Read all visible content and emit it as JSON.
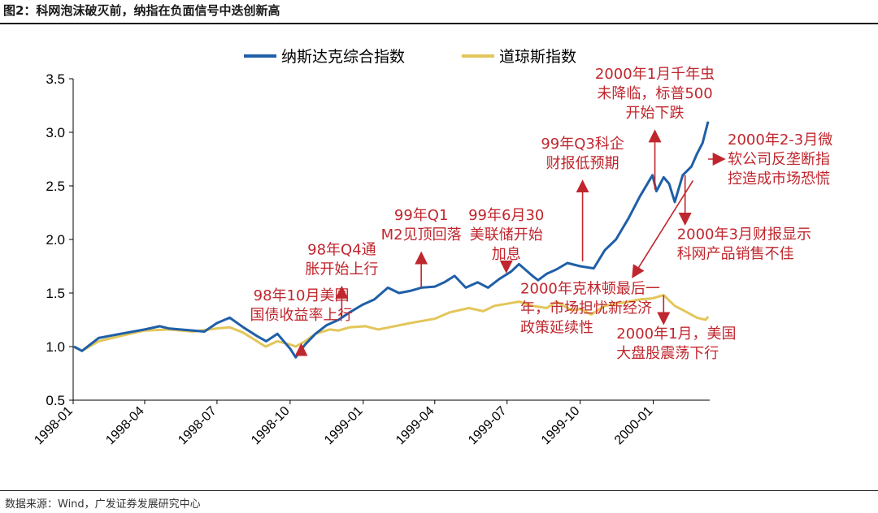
{
  "title": "图2：科网泡沫破灭前，纳指在负面信号中迭创新高",
  "source": "数据来源：Wind，广发证券发展研究中心",
  "colors": {
    "nasdaq": "#1f5fa8",
    "dow": "#e3c65a",
    "annotation": "#c0262d",
    "axis": "#000000"
  },
  "chart_data": {
    "type": "line",
    "x_start": "1998-01",
    "x_end": "2000-03",
    "x_ticks": [
      "1998-01",
      "1998-04",
      "1998-07",
      "1998-10",
      "1999-01",
      "1999-04",
      "1999-07",
      "1999-10",
      "2000-01"
    ],
    "ylim": [
      0.5,
      3.5
    ],
    "y_ticks": [
      "0.5",
      "1.0",
      "1.5",
      "2.0",
      "2.5",
      "3.0",
      "3.5"
    ],
    "legend": {
      "position": "top",
      "entries": [
        "纳斯达克综合指数",
        "道琼斯指数"
      ]
    },
    "series": [
      {
        "name": "纳斯达克综合指数",
        "color": "#1f5fa8",
        "x": [
          "1998-01-02",
          "1998-01-12",
          "1998-02-02",
          "1998-03-02",
          "1998-04-01",
          "1998-04-20",
          "1998-05-01",
          "1998-06-01",
          "1998-06-15",
          "1998-07-01",
          "1998-07-17",
          "1998-08-03",
          "1998-08-20",
          "1998-09-01",
          "1998-09-15",
          "1998-10-01",
          "1998-10-08",
          "1998-10-20",
          "1998-11-02",
          "1998-11-16",
          "1998-12-01",
          "1998-12-15",
          "1998-12-31",
          "1999-01-15",
          "1999-02-01",
          "1999-02-15",
          "1999-03-01",
          "1999-03-15",
          "1999-04-01",
          "1999-04-13",
          "1999-04-26",
          "1999-05-10",
          "1999-05-25",
          "1999-06-07",
          "1999-06-21",
          "1999-07-06",
          "1999-07-16",
          "1999-08-02",
          "1999-08-09",
          "1999-08-20",
          "1999-09-01",
          "1999-09-15",
          "1999-10-01",
          "1999-10-18",
          "1999-11-01",
          "1999-11-15",
          "1999-12-01",
          "1999-12-15",
          "1999-12-31",
          "2000-01-05",
          "2000-01-14",
          "2000-01-21",
          "2000-01-28",
          "2000-02-07",
          "2000-02-18",
          "2000-02-25",
          "2000-03-03",
          "2000-03-10"
        ],
        "y": [
          1.0,
          0.96,
          1.08,
          1.12,
          1.16,
          1.19,
          1.17,
          1.15,
          1.14,
          1.22,
          1.27,
          1.18,
          1.1,
          1.05,
          1.12,
          0.98,
          0.9,
          1.02,
          1.12,
          1.2,
          1.25,
          1.32,
          1.39,
          1.44,
          1.55,
          1.5,
          1.52,
          1.55,
          1.56,
          1.6,
          1.66,
          1.55,
          1.6,
          1.55,
          1.63,
          1.7,
          1.77,
          1.66,
          1.62,
          1.68,
          1.72,
          1.78,
          1.75,
          1.73,
          1.9,
          2.0,
          2.2,
          2.4,
          2.6,
          2.45,
          2.58,
          2.52,
          2.35,
          2.6,
          2.68,
          2.8,
          2.9,
          3.1
        ]
      },
      {
        "name": "道琼斯指数",
        "color": "#e3c65a",
        "x": [
          "1998-01-02",
          "1998-01-12",
          "1998-02-02",
          "1998-03-02",
          "1998-04-01",
          "1998-05-01",
          "1998-06-01",
          "1998-07-01",
          "1998-07-17",
          "1998-08-03",
          "1998-08-31",
          "1998-09-15",
          "1998-10-01",
          "1998-10-08",
          "1998-10-20",
          "1998-11-02",
          "1998-11-20",
          "1998-12-01",
          "1998-12-15",
          "1999-01-04",
          "1999-01-20",
          "1999-02-03",
          "1999-03-01",
          "1999-04-01",
          "1999-04-20",
          "1999-05-14",
          "1999-06-01",
          "1999-06-15",
          "1999-07-01",
          "1999-07-16",
          "1999-08-02",
          "1999-08-20",
          "1999-09-01",
          "1999-09-20",
          "1999-10-01",
          "1999-10-15",
          "1999-11-01",
          "1999-11-15",
          "1999-12-01",
          "1999-12-15",
          "1999-12-31",
          "2000-01-14",
          "2000-01-28",
          "2000-02-10",
          "2000-02-25",
          "2000-03-07",
          "2000-03-10"
        ],
        "y": [
          1.0,
          0.96,
          1.05,
          1.1,
          1.15,
          1.16,
          1.14,
          1.17,
          1.18,
          1.13,
          1.0,
          1.05,
          1.02,
          1.0,
          1.05,
          1.12,
          1.16,
          1.15,
          1.18,
          1.19,
          1.16,
          1.18,
          1.22,
          1.26,
          1.32,
          1.36,
          1.33,
          1.38,
          1.4,
          1.42,
          1.38,
          1.36,
          1.42,
          1.34,
          1.35,
          1.3,
          1.38,
          1.4,
          1.42,
          1.44,
          1.45,
          1.48,
          1.38,
          1.33,
          1.27,
          1.25,
          1.28
        ]
      }
    ],
    "annotations": [
      {
        "lines": [
          "98年10月美国",
          "国债收益率上行"
        ],
        "at": "1998-10-15",
        "value": 1.0,
        "text_value": 1.43,
        "direction": "up"
      },
      {
        "lines": [
          "98年Q4通",
          "胀开始上行"
        ],
        "at": "1998-12-05",
        "value": 1.27,
        "text_value": 1.86,
        "direction": "up"
      },
      {
        "lines": [
          "99年Q1",
          "M2见顶回落"
        ],
        "at": "1999-03-15",
        "value": 1.54,
        "text_value": 2.18,
        "direction": "up"
      },
      {
        "lines": [
          "99年6月30",
          "美联储开始",
          "加息"
        ],
        "at": "1999-06-30",
        "value": 1.74,
        "text_value": 2.18,
        "direction": "up"
      },
      {
        "lines": [
          "99年Q3科企",
          "财报低预期"
        ],
        "at": "1999-10-04",
        "value": 1.78,
        "text_value": 2.85,
        "direction": "up"
      },
      {
        "lines": [
          "2000年1月千年虫",
          "未降临，标普500",
          "开始下跌"
        ],
        "at": "2000-01-03",
        "value": 2.45,
        "text_value": 3.5,
        "direction": "up"
      },
      {
        "lines": [
          "2000年2-3月微",
          "软公司反垄断指",
          "控造成市场恐慌"
        ],
        "at": "2000-03-10",
        "value": 2.75,
        "text_value": 2.75,
        "direction": "right"
      },
      {
        "lines": [
          "2000年3月财报显示",
          "科网产品销售不佳"
        ],
        "at": "2000-02-10",
        "value": 2.6,
        "text_value": 2.05,
        "direction": "down"
      },
      {
        "lines": [
          "2000年克林顿最后一",
          "年，市场担忧新经济",
          "政策延续性"
        ],
        "at": "1999-10-28",
        "value": 1.75,
        "text_value": 1.42,
        "direction": "diagonal"
      },
      {
        "lines": [
          "2000年1月，美国",
          "大盘股震荡下行"
        ],
        "at": "2000-01-14",
        "value": 1.48,
        "text_value": 0.97,
        "direction": "down"
      }
    ]
  }
}
